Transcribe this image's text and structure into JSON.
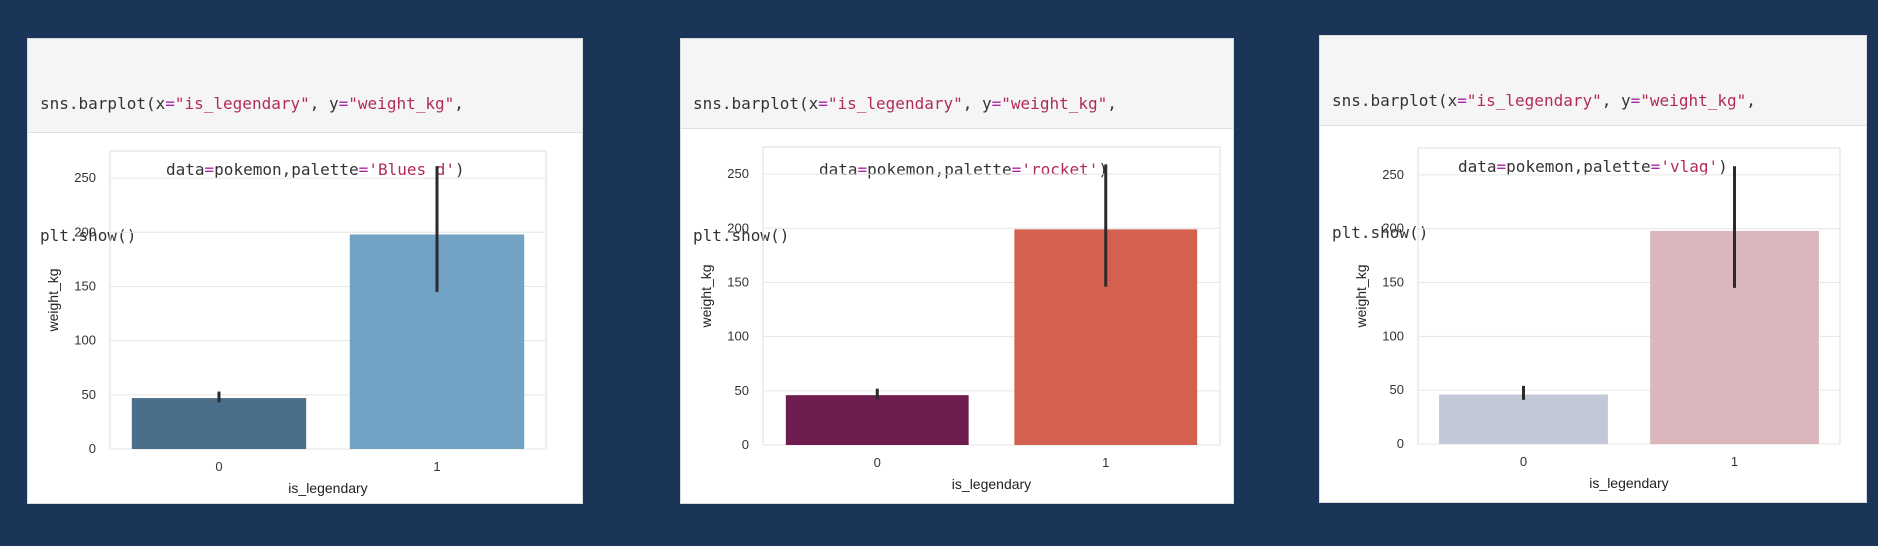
{
  "colors": {
    "page_background": "#1b3558",
    "errorbar": "#2b2b2b",
    "grid": "#e6e6e6"
  },
  "panels": [
    {
      "code": {
        "line1_prefix": "sns.barplot(x",
        "line1_eq1": "=",
        "line1_x": "\"is_legendary\"",
        "line1_mid": ", y",
        "line1_eq2": "=",
        "line1_y": "\"weight_kg\"",
        "line1_suffix": ",",
        "line2_prefix": "data",
        "line2_eq": "=",
        "line2_mid": "pokemon,palette",
        "line2_eq2": "=",
        "line2_palette": "'Blues_d'",
        "line2_suffix": ")",
        "line3": "plt.show()"
      },
      "bar_colors": [
        "#4a6f8a",
        "#72a3c4"
      ]
    },
    {
      "code": {
        "line1_prefix": "sns.barplot(x",
        "line1_eq1": "=",
        "line1_x": "\"is_legendary\"",
        "line1_mid": ", y",
        "line1_eq2": "=",
        "line1_y": "\"weight_kg\"",
        "line1_suffix": ",",
        "line2_prefix": "data",
        "line2_eq": "=",
        "line2_mid": "pokemon,palette",
        "line2_eq2": "=",
        "line2_palette": "'rocket'",
        "line2_suffix": ")",
        "line3": "plt.show()"
      },
      "bar_colors": [
        "#6e1d4e",
        "#d4604f"
      ]
    },
    {
      "code": {
        "line1_prefix": "sns.barplot(x",
        "line1_eq1": "=",
        "line1_x": "\"is_legendary\"",
        "line1_mid": ", y",
        "line1_eq2": "=",
        "line1_y": "\"weight_kg\"",
        "line1_suffix": ",",
        "line2_prefix": "data",
        "line2_eq": "=",
        "line2_mid": "pokemon,palette",
        "line2_eq2": "=",
        "line2_palette": "'vlag'",
        "line2_suffix": ")",
        "line3": "plt.show()"
      },
      "bar_colors": [
        "#c2c8d6",
        "#dbb6bd"
      ]
    }
  ],
  "chart_data": [
    {
      "type": "bar",
      "categories": [
        "0",
        "1"
      ],
      "values": [
        47,
        198
      ],
      "errors": [
        [
          43,
          53
        ],
        [
          145,
          261
        ]
      ],
      "xlabel": "is_legendary",
      "ylabel": "weight_kg",
      "yticks": [
        0,
        50,
        100,
        150,
        200,
        250
      ],
      "ylim": [
        0,
        275
      ],
      "grid": true
    },
    {
      "type": "bar",
      "categories": [
        "0",
        "1"
      ],
      "values": [
        46,
        199
      ],
      "errors": [
        [
          42,
          52
        ],
        [
          146,
          259
        ]
      ],
      "xlabel": "is_legendary",
      "ylabel": "weight_kg",
      "yticks": [
        0,
        50,
        100,
        150,
        200,
        250
      ],
      "ylim": [
        0,
        275
      ],
      "grid": true
    },
    {
      "type": "bar",
      "categories": [
        "0",
        "1"
      ],
      "values": [
        46,
        198
      ],
      "errors": [
        [
          41,
          54
        ],
        [
          145,
          258
        ]
      ],
      "xlabel": "is_legendary",
      "ylabel": "weight_kg",
      "yticks": [
        0,
        50,
        100,
        150,
        200,
        250
      ],
      "ylim": [
        0,
        275
      ],
      "grid": true
    }
  ]
}
